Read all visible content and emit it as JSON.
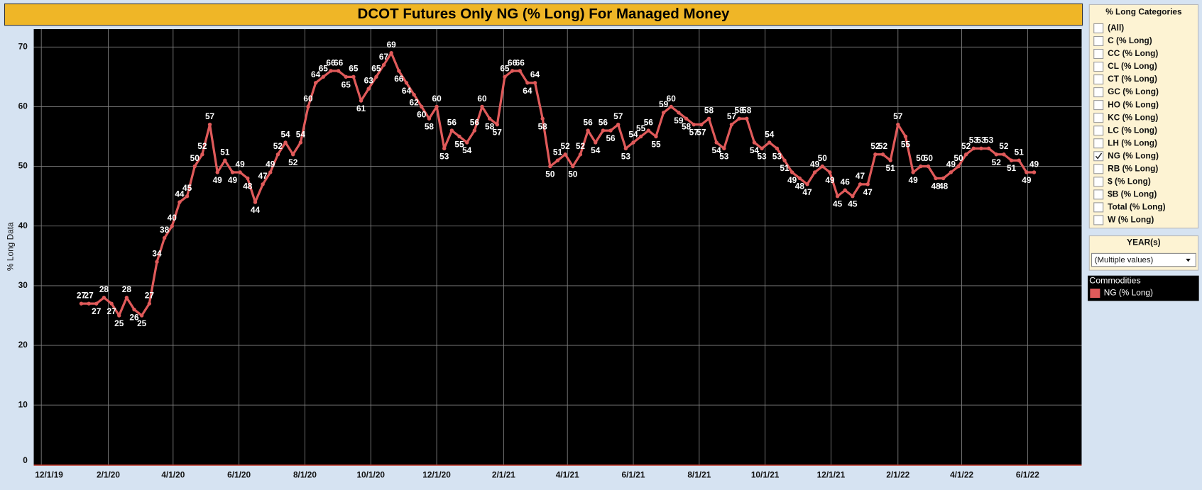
{
  "chart_data": {
    "type": "line",
    "title": "DCOT Futures Only NG (% Long) For Managed Money",
    "ylabel": "% Long Data",
    "legend_title": "Commodities",
    "x": [
      "2020-01-07",
      "2020-01-14",
      "2020-01-21",
      "2020-01-28",
      "2020-02-04",
      "2020-02-11",
      "2020-02-18",
      "2020-02-25",
      "2020-03-03",
      "2020-03-10",
      "2020-03-17",
      "2020-03-24",
      "2020-03-31",
      "2020-04-07",
      "2020-04-14",
      "2020-04-21",
      "2020-04-28",
      "2020-05-05",
      "2020-05-12",
      "2020-05-19",
      "2020-05-26",
      "2020-06-02",
      "2020-06-09",
      "2020-06-16",
      "2020-06-23",
      "2020-06-30",
      "2020-07-07",
      "2020-07-14",
      "2020-07-21",
      "2020-07-28",
      "2020-08-04",
      "2020-08-11",
      "2020-08-18",
      "2020-08-25",
      "2020-09-01",
      "2020-09-08",
      "2020-09-15",
      "2020-09-22",
      "2020-09-29",
      "2020-10-06",
      "2020-10-13",
      "2020-10-20",
      "2020-10-27",
      "2020-11-03",
      "2020-11-10",
      "2020-11-17",
      "2020-11-24",
      "2020-12-01",
      "2020-12-08",
      "2020-12-15",
      "2020-12-22",
      "2020-12-29",
      "2021-01-05",
      "2021-01-12",
      "2021-01-19",
      "2021-01-26",
      "2021-02-02",
      "2021-02-09",
      "2021-02-16",
      "2021-02-23",
      "2021-03-02",
      "2021-03-09",
      "2021-03-16",
      "2021-03-23",
      "2021-03-30",
      "2021-04-06",
      "2021-04-13",
      "2021-04-20",
      "2021-04-27",
      "2021-05-04",
      "2021-05-11",
      "2021-05-18",
      "2021-05-25",
      "2021-06-01",
      "2021-06-08",
      "2021-06-15",
      "2021-06-22",
      "2021-06-29",
      "2021-07-06",
      "2021-07-13",
      "2021-07-20",
      "2021-07-27",
      "2021-08-03",
      "2021-08-10",
      "2021-08-17",
      "2021-08-24",
      "2021-08-31",
      "2021-09-07",
      "2021-09-14",
      "2021-09-21",
      "2021-09-28",
      "2021-10-05",
      "2021-10-12",
      "2021-10-19",
      "2021-10-26",
      "2021-11-02",
      "2021-11-09",
      "2021-11-16",
      "2021-11-23",
      "2021-11-30",
      "2021-12-07",
      "2021-12-14",
      "2021-12-21",
      "2021-12-28",
      "2022-01-04",
      "2022-01-11",
      "2022-01-18",
      "2022-01-25",
      "2022-02-01",
      "2022-02-08",
      "2022-02-15",
      "2022-02-22",
      "2022-03-01",
      "2022-03-08",
      "2022-03-15",
      "2022-03-22",
      "2022-03-29",
      "2022-04-05",
      "2022-04-12",
      "2022-04-19",
      "2022-04-26",
      "2022-05-03",
      "2022-05-10",
      "2022-05-17",
      "2022-05-24",
      "2022-05-31",
      "2022-06-07"
    ],
    "series": [
      {
        "name": "NG (% Long)",
        "color": "#e05a5a",
        "values": [
          27,
          27,
          27,
          28,
          27,
          25,
          28,
          26,
          25,
          27,
          34,
          38,
          40,
          44,
          45,
          50,
          52,
          57,
          49,
          51,
          49,
          49,
          48,
          44,
          47,
          49,
          52,
          54,
          52,
          54,
          60,
          64,
          65,
          66,
          66,
          65,
          65,
          61,
          63,
          65,
          67,
          69,
          66,
          64,
          62,
          60,
          58,
          60,
          53,
          56,
          55,
          54,
          56,
          60,
          58,
          57,
          65,
          66,
          66,
          64,
          64,
          58,
          50,
          51,
          52,
          50,
          52,
          56,
          54,
          56,
          56,
          57,
          53,
          54,
          55,
          56,
          55,
          59,
          60,
          59,
          58,
          57,
          57,
          58,
          54,
          53,
          57,
          58,
          58,
          54,
          53,
          54,
          53,
          51,
          49,
          48,
          47,
          49,
          50,
          49,
          45,
          46,
          45,
          47,
          47,
          52,
          52,
          51,
          57,
          55,
          49,
          50,
          50,
          48,
          48,
          49,
          50,
          52,
          53,
          53,
          53,
          52,
          52,
          51,
          51,
          49,
          49
        ]
      }
    ],
    "xlim": [
      "2019-11-24",
      "2022-07-21"
    ],
    "xticks": [
      {
        "value": "2019-12-01",
        "label": "12/1/19"
      },
      {
        "value": "2020-02-01",
        "label": "2/1/20"
      },
      {
        "value": "2020-04-01",
        "label": "4/1/20"
      },
      {
        "value": "2020-06-01",
        "label": "6/1/20"
      },
      {
        "value": "2020-08-01",
        "label": "8/1/20"
      },
      {
        "value": "2020-10-01",
        "label": "10/1/20"
      },
      {
        "value": "2020-12-01",
        "label": "12/1/20"
      },
      {
        "value": "2021-02-01",
        "label": "2/1/21"
      },
      {
        "value": "2021-04-01",
        "label": "4/1/21"
      },
      {
        "value": "2021-06-01",
        "label": "6/1/21"
      },
      {
        "value": "2021-08-01",
        "label": "8/1/21"
      },
      {
        "value": "2021-10-01",
        "label": "10/1/21"
      },
      {
        "value": "2021-12-01",
        "label": "12/1/21"
      },
      {
        "value": "2022-02-01",
        "label": "2/1/22"
      },
      {
        "value": "2022-04-01",
        "label": "4/1/22"
      },
      {
        "value": "2022-06-01",
        "label": "6/1/22"
      }
    ],
    "ylim": [
      0,
      73
    ],
    "yticks": [
      0,
      10,
      20,
      30,
      40,
      50,
      60,
      70
    ],
    "grid": true
  },
  "panels": {
    "categories": {
      "title": "% Long Categories",
      "items": [
        {
          "label": "(All)",
          "checked": false
        },
        {
          "label": "C (% Long)",
          "checked": false
        },
        {
          "label": "CC (% Long)",
          "checked": false
        },
        {
          "label": "CL (% Long)",
          "checked": false
        },
        {
          "label": "CT (% Long)",
          "checked": false
        },
        {
          "label": "GC (% Long)",
          "checked": false
        },
        {
          "label": "HO (% Long)",
          "checked": false
        },
        {
          "label": "KC (% Long)",
          "checked": false
        },
        {
          "label": "LC (% Long)",
          "checked": false
        },
        {
          "label": "LH (% Long)",
          "checked": false
        },
        {
          "label": "NG (% Long)",
          "checked": true
        },
        {
          "label": "RB (% Long)",
          "checked": false
        },
        {
          "label": "$ (% Long)",
          "checked": false
        },
        {
          "label": "$B (% Long)",
          "checked": false
        },
        {
          "label": "Total (% Long)",
          "checked": false
        },
        {
          "label": "W (% Long)",
          "checked": false
        }
      ]
    },
    "year": {
      "title": "YEAR(s)",
      "selection": "(Multiple values)"
    }
  }
}
